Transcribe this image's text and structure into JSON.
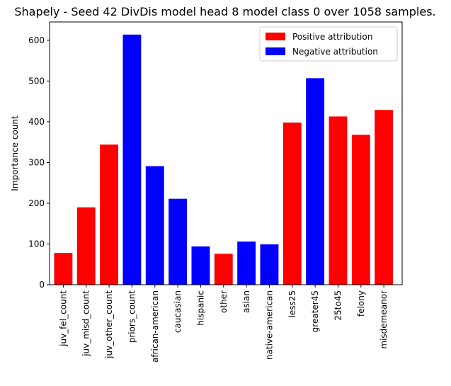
{
  "chart_data": {
    "type": "bar",
    "title": "Shapely - Seed 42 DivDis model head 8 model class 0 over 1058 samples.",
    "xlabel": "",
    "ylabel": "Importance count",
    "ylim": [
      0,
      645
    ],
    "yticks": [
      0,
      100,
      200,
      300,
      400,
      500,
      600
    ],
    "categories": [
      "juv_fel_count",
      "juv_misd_count",
      "juv_other_count",
      "priors_count",
      "african-american",
      "caucasian",
      "hispanic",
      "other",
      "asian",
      "native-american",
      "less25",
      "greater45",
      "25to45",
      "felony",
      "misdemeanor"
    ],
    "values": [
      78,
      190,
      344,
      614,
      291,
      211,
      94,
      76,
      106,
      99,
      398,
      507,
      413,
      368,
      429
    ],
    "attribution": [
      "positive",
      "positive",
      "positive",
      "negative",
      "negative",
      "negative",
      "negative",
      "positive",
      "negative",
      "negative",
      "positive",
      "negative",
      "positive",
      "positive",
      "positive"
    ],
    "colors": {
      "positive": "#ff0000",
      "negative": "#0000ff"
    },
    "legend": {
      "position": "top-right",
      "entries": [
        {
          "label": "Positive attribution",
          "key": "positive"
        },
        {
          "label": "Negative attribution",
          "key": "negative"
        }
      ]
    },
    "grid": false
  }
}
